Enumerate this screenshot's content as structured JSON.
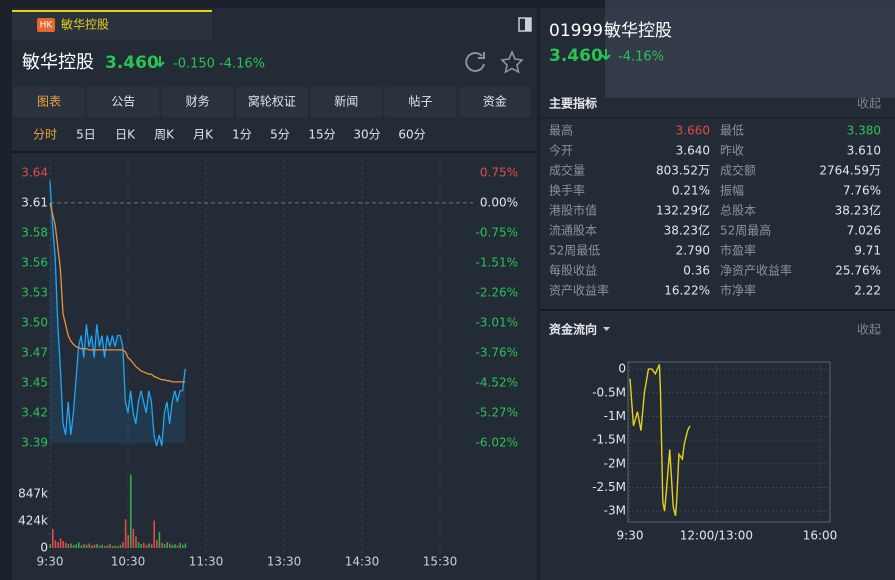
{
  "tab": {
    "badge": "HK",
    "title": "敏华控股"
  },
  "quote": {
    "name": "敏华控股",
    "price": "3.460",
    "change": "-0.150",
    "change_pct": "-4.16%"
  },
  "tabs": [
    "图表",
    "公告",
    "财务",
    "窝轮权证",
    "新闻",
    "帖子",
    "资金"
  ],
  "periods": [
    "分时",
    "5日",
    "日K",
    "周K",
    "月K",
    "1分",
    "5分",
    "15分",
    "30分",
    "60分"
  ],
  "intraday": {
    "type": "line",
    "x": [
      0,
      2,
      4,
      6,
      8,
      10,
      12,
      14,
      16,
      18,
      20,
      22,
      24,
      26,
      28,
      30,
      32,
      34,
      36,
      38,
      40,
      42,
      44,
      46,
      48,
      50,
      52,
      54,
      56,
      58,
      60,
      62,
      64,
      66,
      68,
      70,
      72,
      74,
      76,
      78,
      80,
      82,
      84,
      86,
      88,
      90,
      92,
      94,
      96,
      98,
      100,
      102,
      104
    ],
    "xlim": [
      0,
      330
    ],
    "xticks": [
      {
        "value": 0,
        "label": "9:30"
      },
      {
        "value": 60,
        "label": "10:30"
      },
      {
        "value": 120,
        "label": "11:30"
      },
      {
        "value": 180,
        "label": "13:30"
      },
      {
        "value": 240,
        "label": "14:30"
      },
      {
        "value": 300,
        "label": "15:30"
      }
    ],
    "ylim": [
      3.3927,
      3.6371
    ],
    "yticks": [
      {
        "value": 3.6371,
        "label": "3.64"
      },
      3.61,
      {
        "value": 3.5829,
        "label": "3.58"
      },
      {
        "value": 3.5557,
        "label": "3.56"
      },
      {
        "value": 3.5286,
        "label": "3.53"
      },
      {
        "value": 3.5014,
        "label": "3.50"
      },
      {
        "value": 3.4743,
        "label": "3.47"
      },
      {
        "value": 3.4468,
        "label": "3.45"
      },
      {
        "value": 3.4198,
        "label": "3.42"
      },
      {
        "value": 3.3927,
        "label": "3.39"
      }
    ],
    "y2lim": [
      -6.02,
      0.75
    ],
    "y2ticks": [
      {
        "value": 0.75,
        "label": "0.75%"
      },
      {
        "value": 0,
        "label": "0.00%"
      },
      {
        "value": -0.75,
        "label": "-0.75%"
      },
      {
        "value": -1.51,
        "label": "-1.51%"
      },
      {
        "value": -2.26,
        "label": "-2.26%"
      },
      {
        "value": -3.01,
        "label": "-3.01%"
      },
      {
        "value": -3.76,
        "label": "-3.76%"
      },
      {
        "value": -4.52,
        "label": "-4.52%"
      },
      {
        "value": -5.27,
        "label": "-5.27%"
      },
      {
        "value": -6.02,
        "label": "-6.02%"
      }
    ],
    "series": [
      {
        "color": "#1ea7f5",
        "values": [
          3.63,
          3.59,
          3.56,
          3.5,
          3.46,
          3.41,
          3.4,
          3.43,
          3.4,
          3.42,
          3.45,
          3.48,
          3.49,
          3.47,
          3.5,
          3.48,
          3.49,
          3.47,
          3.5,
          3.48,
          3.49,
          3.47,
          3.49,
          3.48,
          3.49,
          3.48,
          3.49,
          3.49,
          3.48,
          3.43,
          3.42,
          3.44,
          3.42,
          3.41,
          3.43,
          3.44,
          3.43,
          3.42,
          3.44,
          3.43,
          3.4,
          3.39,
          3.4,
          3.39,
          3.42,
          3.43,
          3.41,
          3.43,
          3.44,
          3.43,
          3.44,
          3.44,
          3.46
        ]
      },
      {
        "color": "#e8923a",
        "values": [
          3.61,
          3.6,
          3.59,
          3.57,
          3.55,
          3.51,
          3.5,
          3.49,
          3.485,
          3.482,
          3.48,
          3.479,
          3.478,
          3.478,
          3.478,
          3.477,
          3.477,
          3.477,
          3.477,
          3.477,
          3.477,
          3.477,
          3.477,
          3.477,
          3.477,
          3.477,
          3.477,
          3.477,
          3.477,
          3.475,
          3.47,
          3.468,
          3.465,
          3.462,
          3.46,
          3.458,
          3.457,
          3.456,
          3.455,
          3.455,
          3.453,
          3.452,
          3.451,
          3.45,
          3.45,
          3.449,
          3.449,
          3.448,
          3.448,
          3.448,
          3.448,
          3.448,
          3.448
        ]
      }
    ],
    "volume": {
      "values": [
        60000,
        300000,
        120000,
        90000,
        150000,
        110000,
        80000,
        60000,
        70000,
        50000,
        60000,
        90000,
        40000,
        60000,
        50000,
        70000,
        40000,
        50000,
        60000,
        40000,
        50000,
        30000,
        40000,
        60000,
        30000,
        40000,
        30000,
        50000,
        90000,
        450000,
        200000,
        1150000,
        300000,
        180000,
        90000,
        60000,
        80000,
        50000,
        70000,
        60000,
        430000,
        120000,
        250000,
        80000,
        60000,
        90000,
        70000,
        50000,
        60000,
        40000,
        80000,
        50000,
        70000
      ],
      "ylim": [
        0,
        1176000
      ],
      "yticks": [
        {
          "value": 847000,
          "label": "847k"
        },
        {
          "value": 424000,
          "label": "424k"
        },
        0
      ],
      "up_color": "#2bb24c",
      "down_color": "#e04c4c"
    }
  },
  "sidebar": {
    "code": "01999",
    "name": "敏华控股",
    "price": "3.460",
    "change_pct": "-4.16%",
    "indicators": {
      "title": "主要指标",
      "toggle": "收起",
      "rows": [
        [
          "最高",
          "3.660",
          "最低",
          "3.380"
        ],
        [
          "今开",
          "3.640",
          "昨收",
          "3.610"
        ],
        [
          "成交量",
          "803.52万",
          "成交额",
          "2764.59万"
        ],
        [
          "换手率",
          "0.21%",
          "振幅",
          "7.76%"
        ],
        [
          "港股市值",
          "132.29亿",
          "总股本",
          "38.23亿"
        ],
        [
          "流通股本",
          "38.23亿",
          "52周最高",
          "7.026"
        ],
        [
          "52周最低",
          "2.790",
          "市盈率",
          "9.71"
        ],
        [
          "每股收益",
          "0.36",
          "净资产收益率",
          "25.76%"
        ],
        [
          "资产收益率",
          "16.22%",
          "市净率",
          "2.22"
        ]
      ]
    },
    "flow": {
      "title": "资金流向",
      "toggle": "收起",
      "chart": {
        "type": "line",
        "color": "#e6cf1d",
        "x": [
          0,
          6,
          13,
          19,
          25,
          32,
          38,
          44,
          51,
          53,
          57,
          60,
          63,
          69,
          72,
          75,
          79,
          81,
          85,
          91,
          94,
          100,
          104
        ],
        "values": [
          -200000,
          -1200000,
          -900000,
          -1300000,
          -500000,
          0,
          0,
          -100000,
          100000,
          -500000,
          -2800000,
          -3000000,
          -2600000,
          -1700000,
          -2300000,
          -2900000,
          -3100000,
          -2800000,
          -1800000,
          -1900000,
          -1600000,
          -1300000,
          -1200000
        ],
        "xlim": [
          0,
          330
        ],
        "xticks": [
          {
            "value": 0,
            "label": "9:30"
          },
          {
            "value": 150,
            "label": "12:00/13:00"
          },
          {
            "value": 330,
            "label": "16:00"
          }
        ],
        "ylim": [
          -3230000,
          150000
        ],
        "yticks": [
          0,
          {
            "value": -500000,
            "label": "-0.5M"
          },
          {
            "value": -1000000,
            "label": "-1M"
          },
          {
            "value": -1500000,
            "label": "-1.5M"
          },
          {
            "value": -2000000,
            "label": "-2M"
          },
          {
            "value": -2500000,
            "label": "-2.5M"
          },
          {
            "value": -3000000,
            "label": "-3M"
          }
        ]
      }
    }
  }
}
